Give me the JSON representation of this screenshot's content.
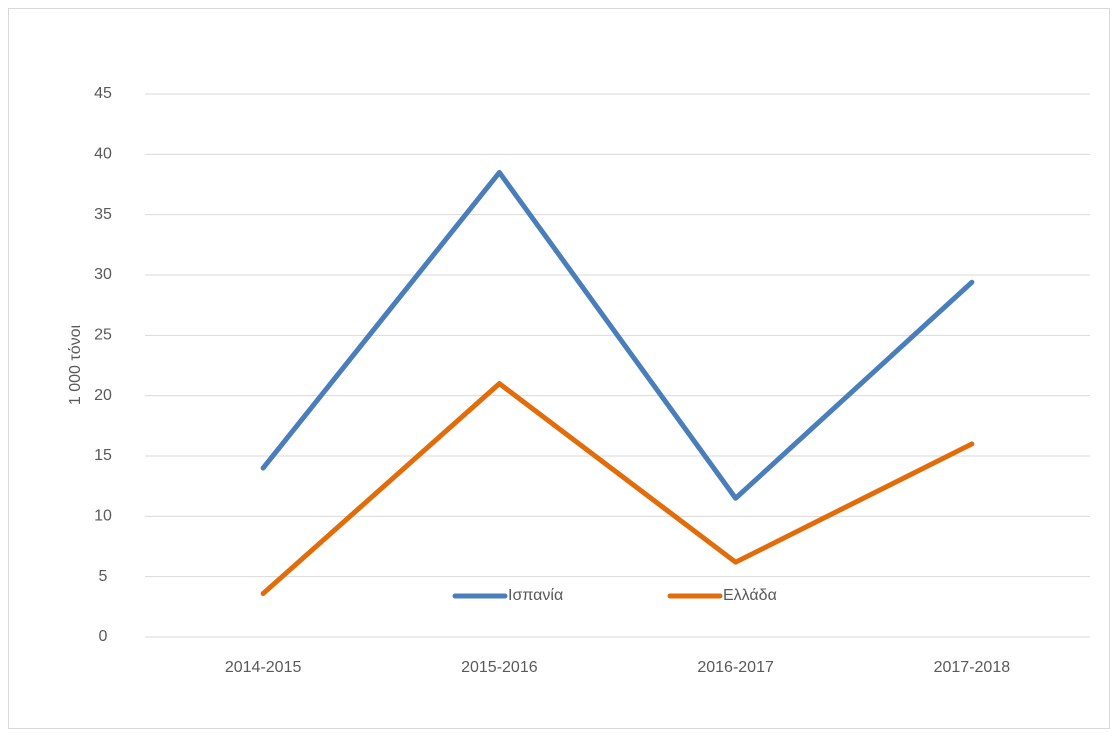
{
  "chart_data": {
    "type": "line",
    "ylabel": "1 000 τόνοι",
    "categories": [
      "2014-2015",
      "2015-2016",
      "2016-2017",
      "2017-2018"
    ],
    "series": [
      {
        "name": "Ισπανία",
        "color": "#4a7ebb",
        "values": [
          14,
          38.5,
          11.5,
          29.4
        ]
      },
      {
        "name": "Ελλάδα",
        "color": "#e36c0a",
        "values": [
          3.6,
          21,
          6.2,
          16
        ]
      }
    ],
    "ylim": [
      0,
      45
    ],
    "yticks": [
      0,
      5,
      10,
      15,
      20,
      25,
      30,
      35,
      40,
      45
    ],
    "grid": true,
    "legend": "bottom"
  }
}
